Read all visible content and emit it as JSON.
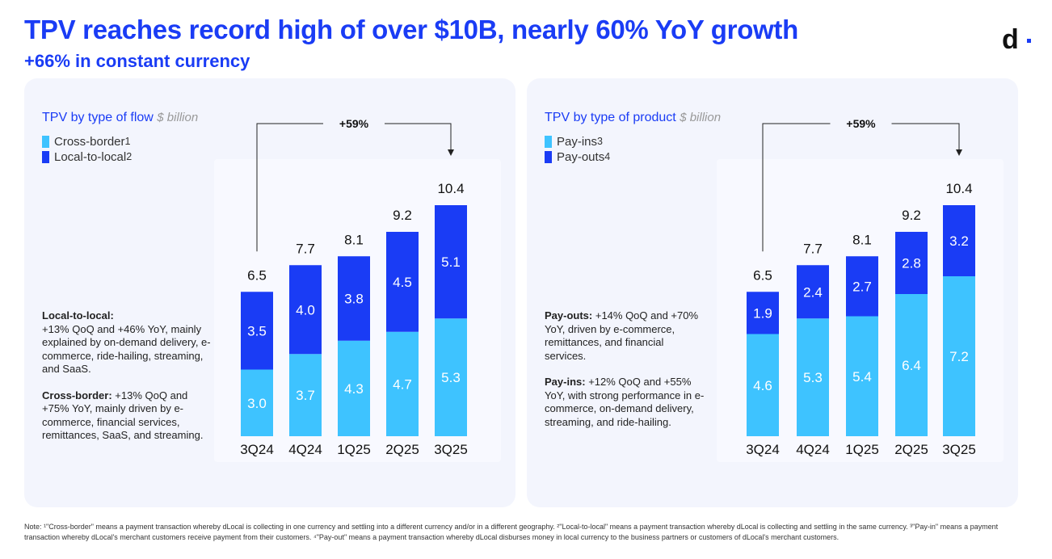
{
  "header": {
    "title": "TPV reaches record high of over $10B, nearly 60% YoY growth",
    "subtitle": "+66% in constant currency",
    "logo": "d"
  },
  "colors": {
    "light": "#3ec3ff",
    "dark": "#1a3cf5",
    "accent": "#1a3cf5"
  },
  "chart_data": [
    {
      "type": "bar",
      "stacked": true,
      "title": "TPV by type of flow",
      "unit": "$ billion",
      "categories": [
        "3Q24",
        "4Q24",
        "1Q25",
        "2Q25",
        "3Q25"
      ],
      "series": [
        {
          "name": "Cross-border",
          "sup": "1",
          "values": [
            3.0,
            3.7,
            4.3,
            4.7,
            5.3
          ]
        },
        {
          "name": "Local-to-local",
          "sup": "2",
          "values": [
            3.5,
            4.0,
            3.8,
            4.5,
            5.1
          ]
        }
      ],
      "totals": [
        "6.5",
        "7.7",
        "8.1",
        "9.2",
        "10.4"
      ],
      "annotation": "+59%"
    },
    {
      "type": "bar",
      "stacked": true,
      "title": "TPV by type of product",
      "unit": "$ billion",
      "categories": [
        "3Q24",
        "4Q24",
        "1Q25",
        "2Q25",
        "3Q25"
      ],
      "series": [
        {
          "name": "Pay-ins",
          "sup": "3",
          "values": [
            4.6,
            5.3,
            5.4,
            6.4,
            7.2
          ]
        },
        {
          "name": "Pay-outs",
          "sup": "4",
          "values": [
            1.9,
            2.4,
            2.7,
            2.8,
            3.2
          ]
        }
      ],
      "totals": [
        "6.5",
        "7.7",
        "8.1",
        "9.2",
        "10.4"
      ],
      "annotation": "+59%"
    }
  ],
  "notes_left": [
    {
      "bold": "Local-to-local:",
      "text": "+13% QoQ and +46% YoY, mainly explained by on-demand delivery, e-commerce, ride-hailing, streaming, and SaaS."
    },
    {
      "bold": "Cross-border:",
      "text": " +13% QoQ and +75% YoY, mainly driven by e-commerce, financial services, remittances, SaaS, and streaming."
    }
  ],
  "notes_right": [
    {
      "bold": "Pay-outs:",
      "text": " +14% QoQ and +70% YoY, driven by e-commerce, remittances, and financial services."
    },
    {
      "bold": "Pay-ins:",
      "text": " +12% QoQ and +55% YoY, with strong performance in e-commerce, on-demand delivery, streaming, and ride-hailing."
    }
  ],
  "footnote": "Note: ¹\"Cross-border\" means a payment transaction whereby dLocal is collecting in one currency and settling into a different currency and/or in a different geography. ²\"Local-to-local\" means a payment transaction whereby dLocal is collecting and settling in the same currency. ³\"Pay-in\" means a payment transaction whereby dLocal's merchant customers receive payment from their customers. ⁴\"Pay-out\" means a payment transaction whereby dLocal disburses money in local currency to the business partners or customers of dLocal's merchant customers."
}
